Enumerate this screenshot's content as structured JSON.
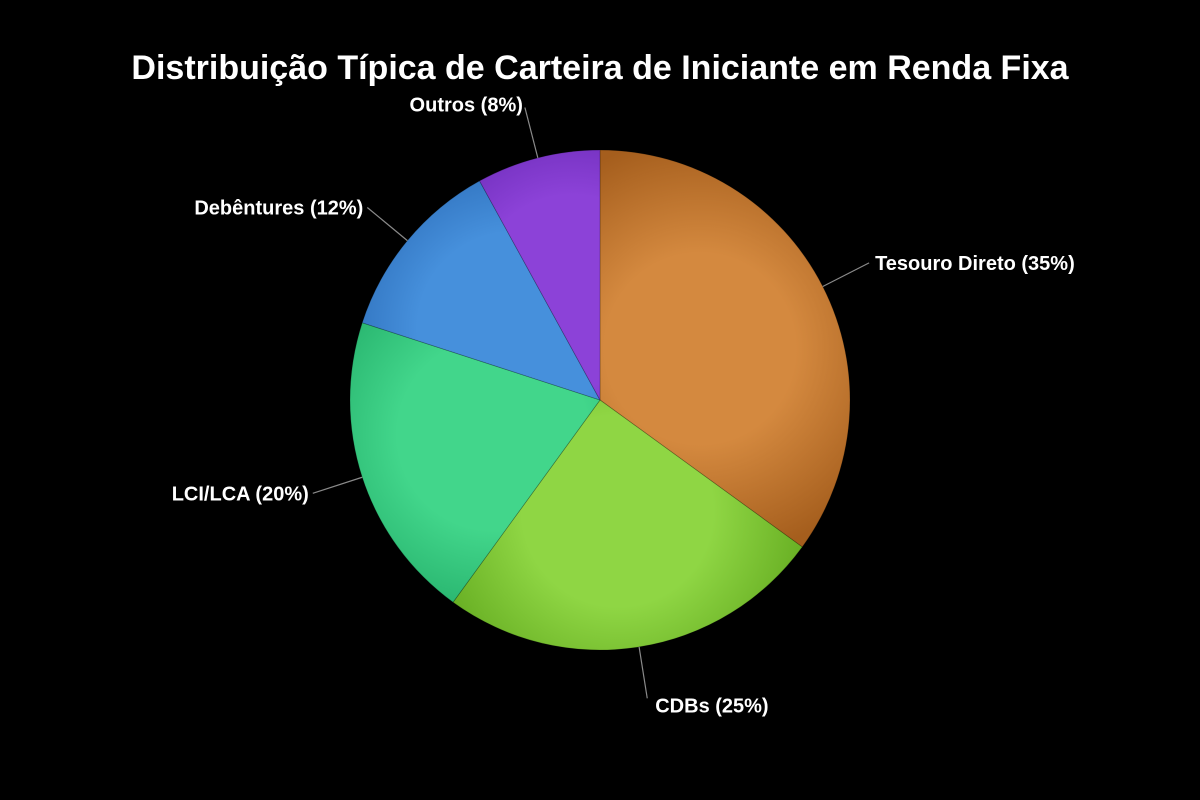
{
  "chart_data": {
    "type": "pie",
    "title": "Distribuição Típica de Carteira de Iniciante em Renda Fixa",
    "slices": [
      {
        "label": "Tesouro Direto (35%)",
        "value": 35,
        "color": "#d4893f",
        "shade": "#a55e1d"
      },
      {
        "label": "CDBs (25%)",
        "value": 25,
        "color": "#8fd644",
        "shade": "#5fa61c"
      },
      {
        "label": "LCI/LCA (20%)",
        "value": 20,
        "color": "#42d68b",
        "shade": "#1fa864"
      },
      {
        "label": "Debêntures (12%)",
        "value": 12,
        "color": "#4690dc",
        "shade": "#2462ad"
      },
      {
        "label": "Outros (8%)",
        "value": 8,
        "color": "#8c42d8",
        "shade": "#5e21a9"
      }
    ],
    "start_angle": "12 o'clock",
    "direction": "clockwise",
    "legend": "none"
  }
}
